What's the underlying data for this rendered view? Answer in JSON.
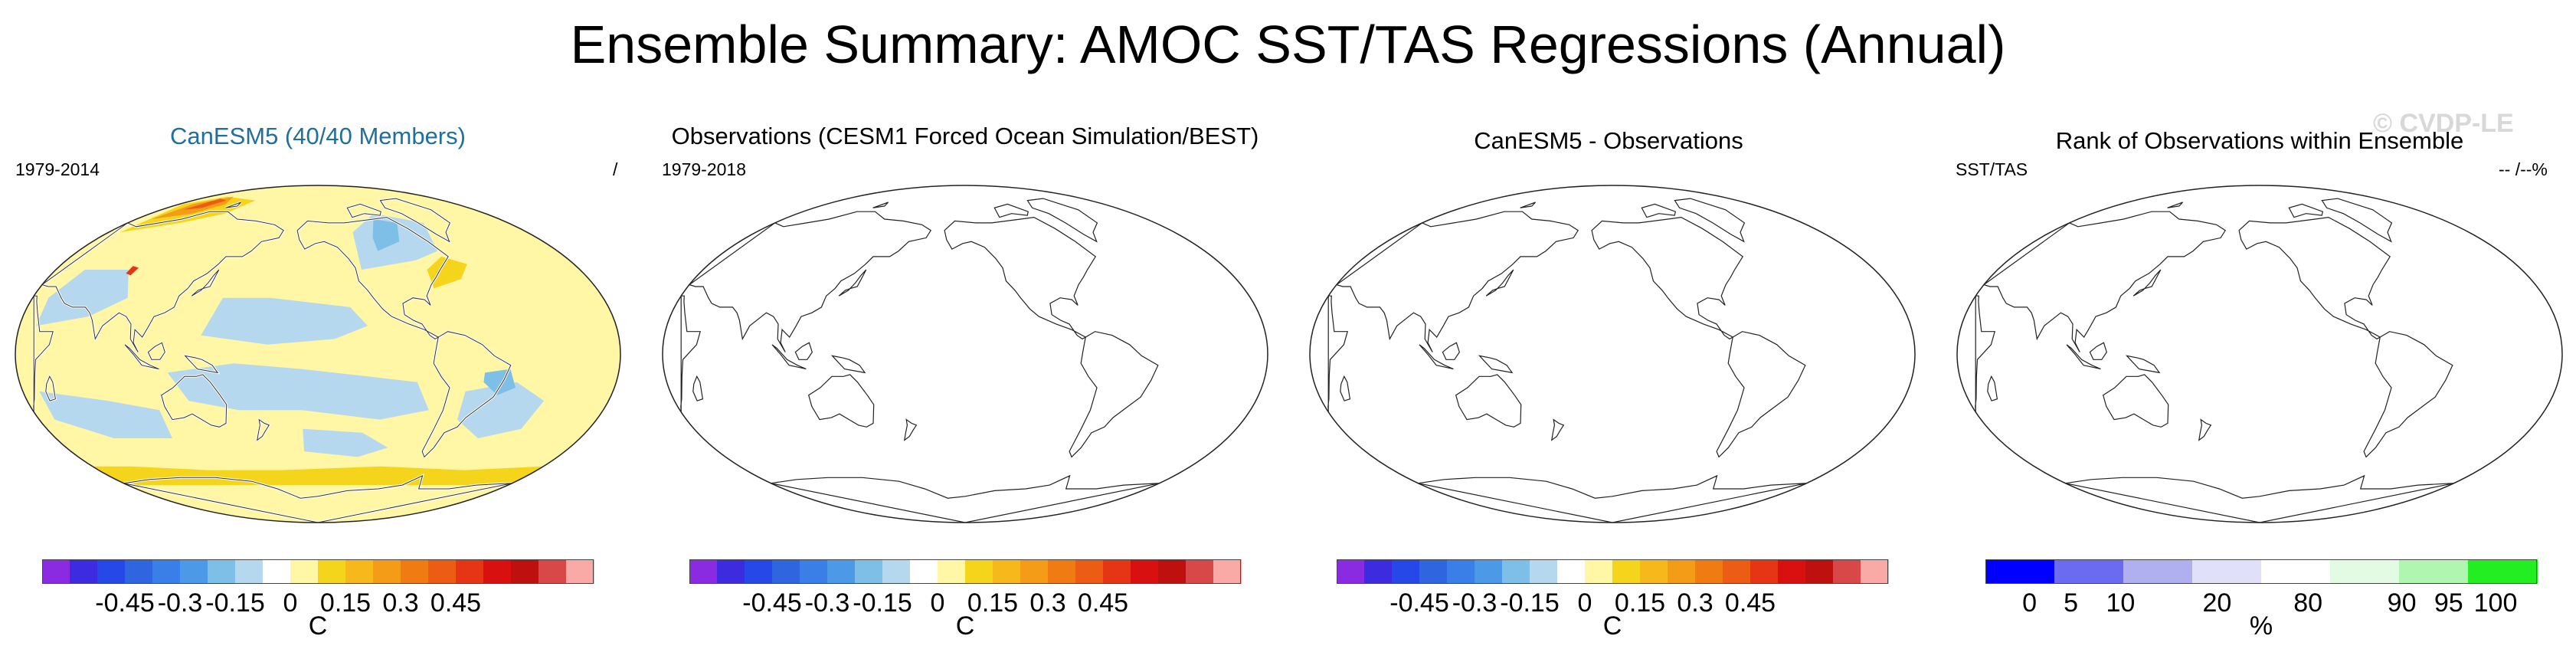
{
  "title": "Ensemble Summary: AMOC SST/TAS Regressions (Annual)",
  "watermark": "© CVDP-LE",
  "panels": [
    {
      "title": "CanESM5 (40/40 Members)",
      "title_color": "#1f6f9f",
      "left_label": "1979-2014",
      "right_label": "/",
      "colorbar": {
        "colors": [
          "#8a2be2",
          "#3d2bdf",
          "#2648e8",
          "#3065e0",
          "#3a7fe8",
          "#4c99e8",
          "#7ebfe8",
          "#b5d8ef",
          "#ffffff",
          "#fff6a6",
          "#f5d51c",
          "#f7b81c",
          "#f49b18",
          "#f07b12",
          "#ed5c14",
          "#e63514",
          "#d91010",
          "#bf1010",
          "#d84848",
          "#f9aaa6"
        ],
        "ticks": [
          "-0.45",
          "-0.3",
          "-0.15",
          "0",
          "0.15",
          "0.3",
          "0.45"
        ],
        "unit": "C"
      }
    },
    {
      "title": "Observations (CESM1 Forced Ocean Simulation/BEST)",
      "title_color": "#000000",
      "left_label": "1979-2018",
      "right_label": "",
      "colorbar": {
        "colors": [
          "#8a2be2",
          "#3d2bdf",
          "#2648e8",
          "#3065e0",
          "#3a7fe8",
          "#4c99e8",
          "#7ebfe8",
          "#b5d8ef",
          "#ffffff",
          "#fff6a6",
          "#f5d51c",
          "#f7b81c",
          "#f49b18",
          "#f07b12",
          "#ed5c14",
          "#e63514",
          "#d91010",
          "#bf1010",
          "#d84848",
          "#f9aaa6"
        ],
        "ticks": [
          "-0.45",
          "-0.3",
          "-0.15",
          "0",
          "0.15",
          "0.3",
          "0.45"
        ],
        "unit": "C"
      }
    },
    {
      "title": "CanESM5 - Observations",
      "title_color": "#000000",
      "left_label": "",
      "right_label": "",
      "colorbar": {
        "colors": [
          "#8a2be2",
          "#3d2bdf",
          "#2648e8",
          "#3065e0",
          "#3a7fe8",
          "#4c99e8",
          "#7ebfe8",
          "#b5d8ef",
          "#ffffff",
          "#fff6a6",
          "#f5d51c",
          "#f7b81c",
          "#f49b18",
          "#f07b12",
          "#ed5c14",
          "#e63514",
          "#d91010",
          "#bf1010",
          "#d84848",
          "#f9aaa6"
        ],
        "ticks": [
          "-0.45",
          "-0.3",
          "-0.15",
          "0",
          "0.15",
          "0.3",
          "0.45"
        ],
        "unit": "C"
      }
    },
    {
      "title": "Rank of Observations within Ensemble",
      "title_color": "#000000",
      "left_label": "SST/TAS",
      "right_label": "-- /--%",
      "colorbar": {
        "colors": [
          "#0000ff",
          "#6b6bf2",
          "#b0b0f0",
          "#e0e0fb",
          "#ffffff",
          "#e2fbe2",
          "#b0f5b0",
          "#22ee22"
        ],
        "ticks": [
          "0",
          "5",
          "10",
          "20",
          "80",
          "90",
          "95",
          "100"
        ],
        "unit": "%"
      }
    }
  ]
}
